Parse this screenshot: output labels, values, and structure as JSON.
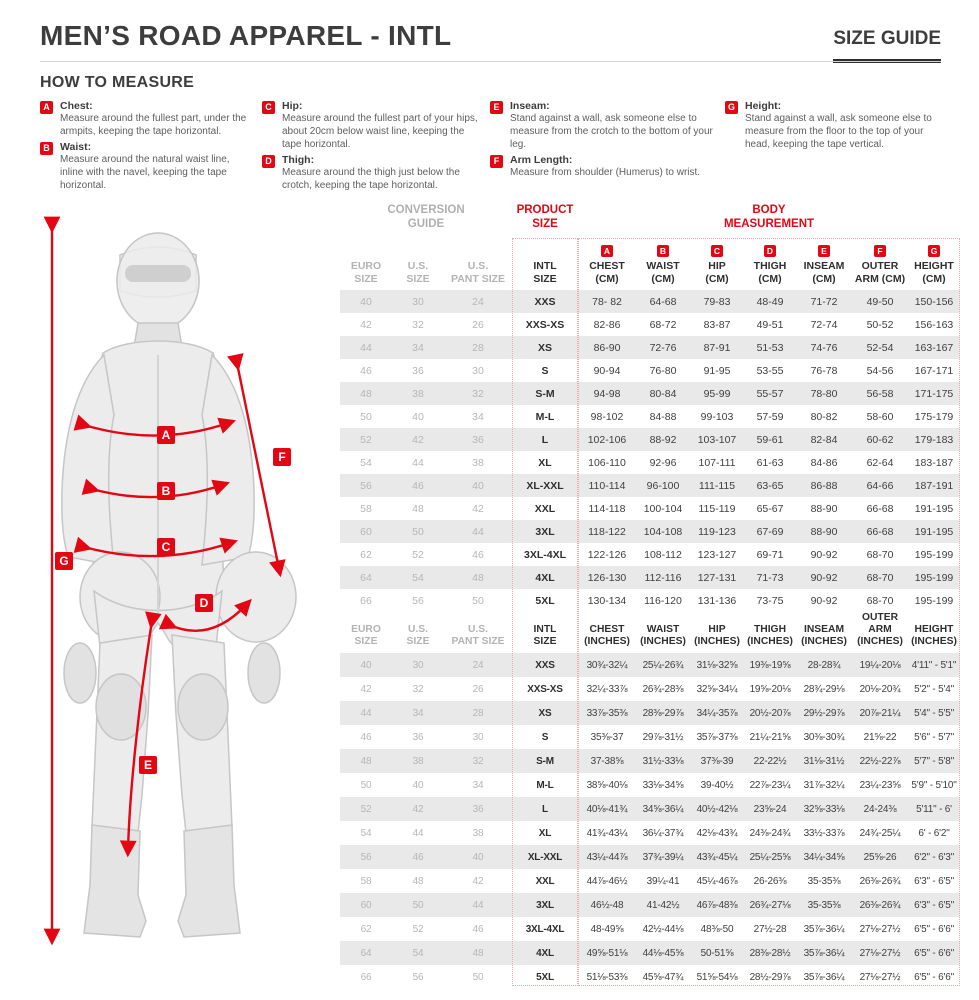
{
  "header": {
    "title": "MEN’S ROAD APPAREL - INTL",
    "size_guide_label": "SIZE GUIDE"
  },
  "how_to_measure": {
    "title": "HOW TO MEASURE",
    "items": [
      {
        "letter": "A",
        "name": "Chest:",
        "desc": "Measure around the fullest part, under the armpits, keeping the tape horizontal."
      },
      {
        "letter": "B",
        "name": "Waist:",
        "desc": "Measure around the natural waist line, inline with the navel, keeping the tape horizontal."
      },
      {
        "letter": "C",
        "name": "Hip:",
        "desc": "Measure around the fullest part of your hips, about 20cm below waist line, keeping the tape horizontal."
      },
      {
        "letter": "D",
        "name": "Thigh:",
        "desc": "Measure around the thigh just below the crotch, keeping the tape horizontal."
      },
      {
        "letter": "E",
        "name": "Inseam:",
        "desc": "Stand against a wall, ask someone else to measure from the crotch to the bottom of your leg."
      },
      {
        "letter": "F",
        "name": "Arm Length:",
        "desc": "Measure from shoulder (Humerus) to wrist."
      },
      {
        "letter": "G",
        "name": "Height:",
        "desc": "Stand against a wall, ask someone else to measure from the floor to the top of your head, keeping the tape vertical."
      }
    ]
  },
  "figure": {
    "labels": [
      "A",
      "B",
      "C",
      "D",
      "E",
      "F",
      "G"
    ]
  },
  "table": {
    "group_headers": {
      "conversion_l1": "CONVERSION",
      "conversion_l2": "GUIDE",
      "product_l1": "PRODUCT",
      "product_l2": "SIZE",
      "body_l1": "BODY",
      "body_l2": "MEASUREMENT"
    },
    "cm_header": [
      {
        "l1": "EURO",
        "l2": "SIZE"
      },
      {
        "l1": "U.S.",
        "l2": "SIZE"
      },
      {
        "l1": "U.S.",
        "l2": "PANT SIZE"
      },
      {
        "l1": "INTL",
        "l2": "SIZE"
      },
      {
        "badge": "A",
        "l1": "CHEST",
        "l2": "(CM)"
      },
      {
        "badge": "B",
        "l1": "WAIST",
        "l2": "(CM)"
      },
      {
        "badge": "C",
        "l1": "HIP",
        "l2": "(CM)"
      },
      {
        "badge": "D",
        "l1": "THIGH",
        "l2": "(CM)"
      },
      {
        "badge": "E",
        "l1": "INSEAM",
        "l2": "(CM)"
      },
      {
        "badge": "F",
        "l1": "OUTER",
        "l2": "ARM (CM)"
      },
      {
        "badge": "G",
        "l1": "HEIGHT",
        "l2": "(CM)"
      }
    ],
    "inch_header": [
      {
        "l1": "EURO",
        "l2": "SIZE"
      },
      {
        "l1": "U.S.",
        "l2": "SIZE"
      },
      {
        "l1": "U.S.",
        "l2": "PANT SIZE"
      },
      {
        "l1": "INTL",
        "l2": "SIZE"
      },
      {
        "l1": "CHEST",
        "l2": "(INCHES)"
      },
      {
        "l1": "WAIST",
        "l2": "(INCHES)"
      },
      {
        "l1": "HIP",
        "l2": "(INCHES)"
      },
      {
        "l1": "THIGH",
        "l2": "(INCHES)"
      },
      {
        "l1": "INSEAM",
        "l2": "(INCHES)"
      },
      {
        "l1": "OUTER ARM",
        "l2": "(INCHES)"
      },
      {
        "l1": "HEIGHT",
        "l2": "(INCHES)"
      }
    ],
    "cm_rows": [
      [
        "40",
        "30",
        "24",
        "XXS",
        "78- 82",
        "64-68",
        "79-83",
        "48-49",
        "71-72",
        "49-50",
        "150-156"
      ],
      [
        "42",
        "32",
        "26",
        "XXS-XS",
        "82-86",
        "68-72",
        "83-87",
        "49-51",
        "72-74",
        "50-52",
        "156-163"
      ],
      [
        "44",
        "34",
        "28",
        "XS",
        "86-90",
        "72-76",
        "87-91",
        "51-53",
        "74-76",
        "52-54",
        "163-167"
      ],
      [
        "46",
        "36",
        "30",
        "S",
        "90-94",
        "76-80",
        "91-95",
        "53-55",
        "76-78",
        "54-56",
        "167-171"
      ],
      [
        "48",
        "38",
        "32",
        "S-M",
        "94-98",
        "80-84",
        "95-99",
        "55-57",
        "78-80",
        "56-58",
        "171-175"
      ],
      [
        "50",
        "40",
        "34",
        "M-L",
        "98-102",
        "84-88",
        "99-103",
        "57-59",
        "80-82",
        "58-60",
        "175-179"
      ],
      [
        "52",
        "42",
        "36",
        "L",
        "102-106",
        "88-92",
        "103-107",
        "59-61",
        "82-84",
        "60-62",
        "179-183"
      ],
      [
        "54",
        "44",
        "38",
        "XL",
        "106-110",
        "92-96",
        "107-111",
        "61-63",
        "84-86",
        "62-64",
        "183-187"
      ],
      [
        "56",
        "46",
        "40",
        "XL-XXL",
        "110-114",
        "96-100",
        "111-115",
        "63-65",
        "86-88",
        "64-66",
        "187-191"
      ],
      [
        "58",
        "48",
        "42",
        "XXL",
        "114-118",
        "100-104",
        "115-119",
        "65-67",
        "88-90",
        "66-68",
        "191-195"
      ],
      [
        "60",
        "50",
        "44",
        "3XL",
        "118-122",
        "104-108",
        "119-123",
        "67-69",
        "88-90",
        "66-68",
        "191-195"
      ],
      [
        "62",
        "52",
        "46",
        "3XL-4XL",
        "122-126",
        "108-112",
        "123-127",
        "69-71",
        "90-92",
        "68-70",
        "195-199"
      ],
      [
        "64",
        "54",
        "48",
        "4XL",
        "126-130",
        "112-116",
        "127-131",
        "71-73",
        "90-92",
        "68-70",
        "195-199"
      ],
      [
        "66",
        "56",
        "50",
        "5XL",
        "130-134",
        "116-120",
        "131-136",
        "73-75",
        "90-92",
        "68-70",
        "195-199"
      ]
    ],
    "inch_rows": [
      [
        "40",
        "30",
        "24",
        "XXS",
        "30¾-32¼",
        "25¼-26¾",
        "31⅛-32⅝",
        "19⅜-19⅝",
        "28-28¾",
        "19¼-20⅛",
        "4'11\" - 5'1\""
      ],
      [
        "42",
        "32",
        "26",
        "XXS-XS",
        "32¼-33⅞",
        "26¾-28⅜",
        "32⅝-34¼",
        "19⅝-20⅛",
        "28¾-29⅛",
        "20⅛-20¾",
        "5'2\" - 5'4\""
      ],
      [
        "44",
        "34",
        "28",
        "XS",
        "33⅞-35⅜",
        "28⅜-29⅞",
        "34¼-35⅞",
        "20½-20⅞",
        "29½-29⅞",
        "20⅞-21¼",
        "5'4\" - 5'5\""
      ],
      [
        "46",
        "36",
        "30",
        "S",
        "35⅜-37",
        "29⅞-31½",
        "35⅞-37⅜",
        "21¼-21⅝",
        "30⅜-30¾",
        "21⅝-22",
        "5'6\" - 5'7\""
      ],
      [
        "48",
        "38",
        "32",
        "S-M",
        "37-38⅝",
        "31½-33⅛",
        "37⅜-39",
        "22-22½",
        "31⅛-31½",
        "22½-22⅞",
        "5'7\" - 5'8\""
      ],
      [
        "50",
        "40",
        "34",
        "M-L",
        "38⅝-40⅛",
        "33⅛-34⅝",
        "39-40½",
        "22⅞-23¼",
        "31⅞-32¼",
        "23¼-23⅝",
        "5'9\" - 5'10\""
      ],
      [
        "52",
        "42",
        "36",
        "L",
        "40⅛-41¾",
        "34⅝-36¼",
        "40½-42⅛",
        "23⅝-24",
        "32⅝-33⅛",
        "24-24⅜",
        "5'11\" - 6'"
      ],
      [
        "54",
        "44",
        "38",
        "XL",
        "41¾-43¼",
        "36¼-37¾",
        "42⅛-43¾",
        "24⅜-24¾",
        "33½-33⅞",
        "24¾-25¼",
        "6' - 6'2\""
      ],
      [
        "56",
        "46",
        "40",
        "XL-XXL",
        "43¼-44⅞",
        "37¾-39¼",
        "43¾-45¼",
        "25¼-25⅝",
        "34¼-34⅝",
        "25⅝-26",
        "6'2\" - 6'3\""
      ],
      [
        "58",
        "48",
        "42",
        "XXL",
        "44⅞-46½",
        "39¼-41",
        "45¼-46⅞",
        "26-26⅜",
        "35-35⅜",
        "26⅜-26¾",
        "6'3\" - 6'5\""
      ],
      [
        "60",
        "50",
        "44",
        "3XL",
        "46½-48",
        "41-42½",
        "46⅞-48⅜",
        "26¾-27⅛",
        "35-35⅜",
        "26⅜-26¾",
        "6'3\" - 6'5\""
      ],
      [
        "62",
        "52",
        "46",
        "3XL-4XL",
        "48-49⅝",
        "42½-44⅛",
        "48⅜-50",
        "27½-28",
        "35⅞-36¼",
        "27⅛-27½",
        "6'5\" - 6'6\""
      ],
      [
        "64",
        "54",
        "48",
        "4XL",
        "49⅝-51⅛",
        "44⅛-45⅝",
        "50-51⅝",
        "28⅜-28½",
        "35⅞-36¼",
        "27⅛-27½",
        "6'5\" - 6'6\""
      ],
      [
        "66",
        "56",
        "50",
        "5XL",
        "51⅛-53⅜",
        "45⅝-47¾",
        "51⅝-54⅛",
        "28½-29⅞",
        "35⅞-36¼",
        "27⅛-27½",
        "6'5\" - 6'6\""
      ]
    ]
  },
  "colors": {
    "accent": "#e30613",
    "heading": "#3d3d3d",
    "muted": "#b3b3b3",
    "row_alt": "#e9e9e9"
  }
}
